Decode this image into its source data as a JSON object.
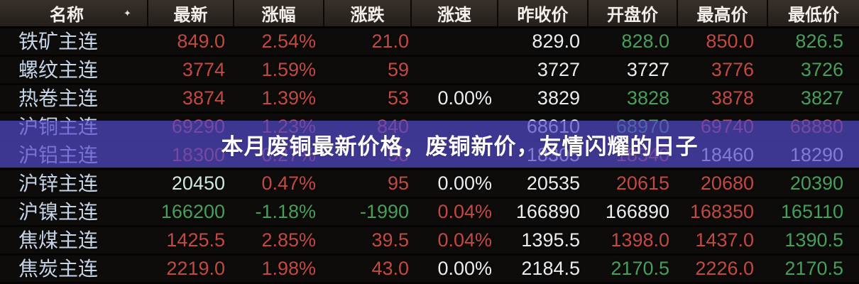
{
  "banner": {
    "text": "本月废铜最新价格，废铜新价，友情闪耀的日子"
  },
  "colors": {
    "up_red": "#c4493f",
    "down_green": "#45a058",
    "neutral_white": "#ededee",
    "pale_green": "#cdebd6",
    "name_blue": "#c5d5e7",
    "banner_bg": "rgba(84,74,204,0.70)"
  },
  "table": {
    "sort_icon": "✦",
    "columns": [
      {
        "key": "name",
        "label": "名称"
      },
      {
        "key": "latest",
        "label": "最新"
      },
      {
        "key": "pct",
        "label": "涨幅"
      },
      {
        "key": "chg",
        "label": "涨跌"
      },
      {
        "key": "speed",
        "label": "涨速"
      },
      {
        "key": "prev",
        "label": "昨收价"
      },
      {
        "key": "open",
        "label": "开盘价"
      },
      {
        "key": "high",
        "label": "最高价"
      },
      {
        "key": "low",
        "label": "最低价"
      }
    ],
    "rows": [
      {
        "name": "铁矿主连",
        "cells": {
          "latest": [
            "849.0",
            "red"
          ],
          "pct": [
            "2.54%",
            "red"
          ],
          "chg": [
            "21.0",
            "red"
          ],
          "speed": [
            "",
            ""
          ],
          "prev": [
            "829.0",
            "white"
          ],
          "open": [
            "828.0",
            "green"
          ],
          "high": [
            "850.0",
            "red"
          ],
          "low": [
            "826.5",
            "green"
          ]
        }
      },
      {
        "name": "螺纹主连",
        "cells": {
          "latest": [
            "3774",
            "red"
          ],
          "pct": [
            "1.59%",
            "red"
          ],
          "chg": [
            "59",
            "red"
          ],
          "speed": [
            "",
            ""
          ],
          "prev": [
            "3727",
            "white"
          ],
          "open": [
            "3727",
            "white"
          ],
          "high": [
            "3776",
            "red"
          ],
          "low": [
            "3726",
            "green"
          ]
        }
      },
      {
        "name": "热卷主连",
        "cells": {
          "latest": [
            "3874",
            "red"
          ],
          "pct": [
            "1.39%",
            "red"
          ],
          "chg": [
            "53",
            "red"
          ],
          "speed": [
            "0.00%",
            "white"
          ],
          "prev": [
            "3829",
            "white"
          ],
          "open": [
            "3828",
            "green"
          ],
          "high": [
            "3878",
            "red"
          ],
          "low": [
            "3827",
            "green"
          ]
        }
      },
      {
        "name": "沪铜主连",
        "cells": {
          "latest": [
            "69290",
            "red"
          ],
          "pct": [
            "1.23%",
            "red"
          ],
          "chg": [
            "840",
            "red"
          ],
          "speed": [
            "",
            ""
          ],
          "prev": [
            "68610",
            "white"
          ],
          "open": [
            "68970",
            "green"
          ],
          "high": [
            "69740",
            "red"
          ],
          "low": [
            "68880",
            "red"
          ]
        }
      },
      {
        "name": "沪铝主连",
        "cells": {
          "latest": [
            "18300",
            "red"
          ],
          "pct": [
            "0.27%",
            "red"
          ],
          "chg": [
            "50",
            "red"
          ],
          "speed": [
            "",
            ""
          ],
          "prev": [
            "18305",
            "white"
          ],
          "open": [
            "18340",
            "red"
          ],
          "high": [
            "18460",
            "white"
          ],
          "low": [
            "18290",
            "white"
          ]
        }
      },
      {
        "name": "沪锌主连",
        "cells": {
          "latest": [
            "20450",
            "pale"
          ],
          "pct": [
            "0.47%",
            "red"
          ],
          "chg": [
            "95",
            "red"
          ],
          "speed": [
            "0.00%",
            "white"
          ],
          "prev": [
            "20535",
            "white"
          ],
          "open": [
            "20615",
            "red"
          ],
          "high": [
            "20680",
            "red"
          ],
          "low": [
            "20390",
            "green"
          ]
        }
      },
      {
        "name": "沪镍主连",
        "cells": {
          "latest": [
            "166200",
            "green"
          ],
          "pct": [
            "-1.18%",
            "green"
          ],
          "chg": [
            "-1990",
            "green"
          ],
          "speed": [
            "0.04%",
            "red"
          ],
          "prev": [
            "166890",
            "white"
          ],
          "open": [
            "166890",
            "white"
          ],
          "high": [
            "168350",
            "red"
          ],
          "low": [
            "165110",
            "green"
          ]
        }
      },
      {
        "name": "焦煤主连",
        "cells": {
          "latest": [
            "1425.5",
            "red"
          ],
          "pct": [
            "2.85%",
            "red"
          ],
          "chg": [
            "39.5",
            "red"
          ],
          "speed": [
            "0.04%",
            "red"
          ],
          "prev": [
            "1395.5",
            "white"
          ],
          "open": [
            "1398.0",
            "red"
          ],
          "high": [
            "1437.0",
            "red"
          ],
          "low": [
            "1390.5",
            "green"
          ]
        }
      },
      {
        "name": "焦炭主连",
        "cells": {
          "latest": [
            "2219.0",
            "red"
          ],
          "pct": [
            "1.98%",
            "red"
          ],
          "chg": [
            "43.0",
            "red"
          ],
          "speed": [
            "0.00%",
            "white"
          ],
          "prev": [
            "2184.5",
            "white"
          ],
          "open": [
            "2170.5",
            "green"
          ],
          "high": [
            "2226.0",
            "red"
          ],
          "low": [
            "2170.5",
            "green"
          ]
        }
      }
    ]
  }
}
